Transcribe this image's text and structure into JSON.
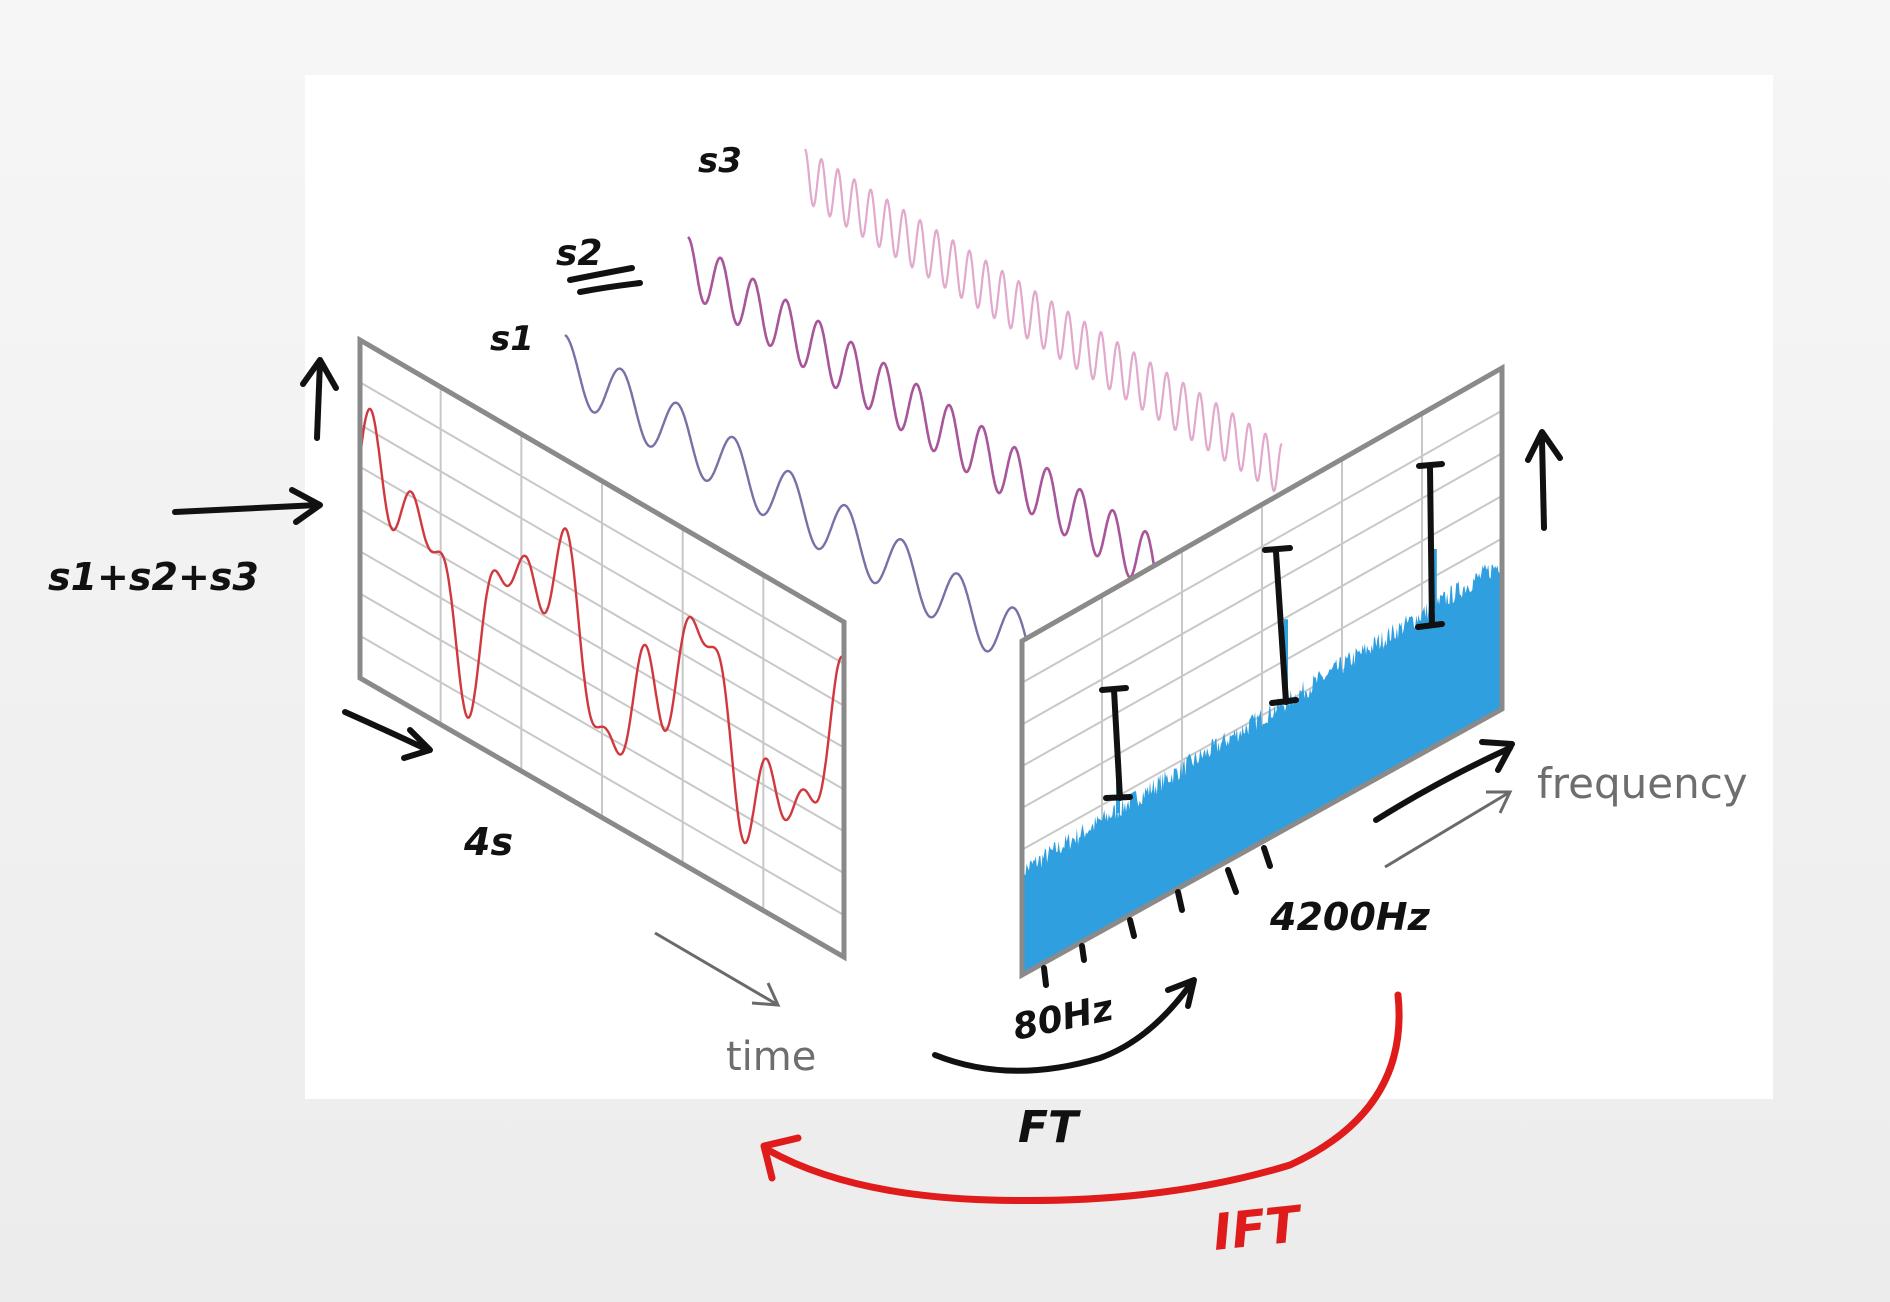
{
  "diagram": {
    "time_axis_label": "time",
    "frequency_axis_label": "frequency"
  },
  "annotations": {
    "s1": "s1",
    "s2": "s2",
    "s3": "s3",
    "sum": "s1+s2+s3",
    "duration": "4s",
    "low_freq": "80Hz",
    "high_freq": "4200Hz",
    "forward": "FT",
    "inverse": "IFT"
  },
  "colors": {
    "sum_wave": "#d0383e",
    "s1_wave": "#7b6fa6",
    "s2_wave": "#a8559a",
    "s3_wave": "#e1a9cb",
    "spectrum_fill": "#2f9fe0",
    "panel_frame": "#8a8a8a",
    "ink": "#111111",
    "inverse_arrow": "#e01b1b"
  }
}
